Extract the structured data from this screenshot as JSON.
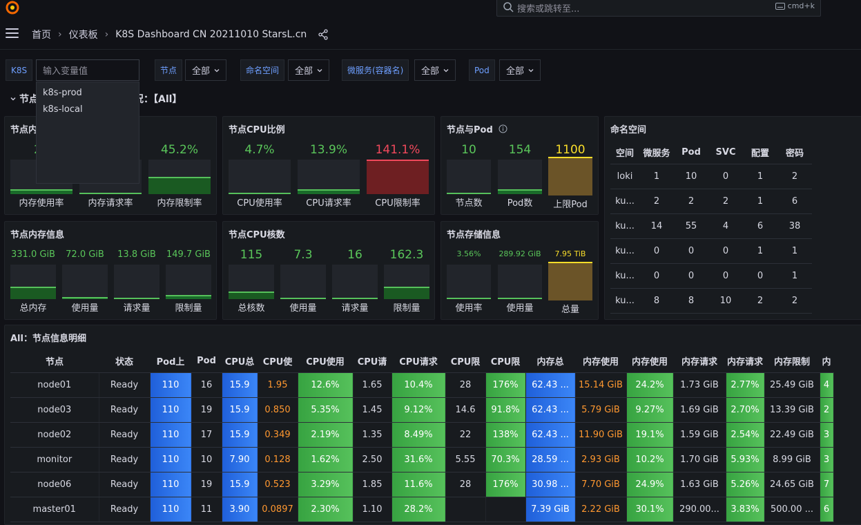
{
  "search": {
    "placeholder": "搜索或跳转至...",
    "shortcut": "cmd+k"
  },
  "breadcrumb": {
    "home": "首页",
    "dashboards": "仪表板",
    "current": "K8S Dashboard CN 20211010 StarsL.cn"
  },
  "variables": {
    "k8s_label": "K8S",
    "k8s_placeholder": "输入变量值",
    "node_label": "节点",
    "node_value": "全部",
    "ns_label": "命名空间",
    "ns_value": "全部",
    "svc_label": "微服务(容器名)",
    "svc_value": "全部",
    "pod_label": "Pod",
    "pod_value": "全部"
  },
  "dropdown": {
    "options": [
      "k8s-prod",
      "k8s-local"
    ]
  },
  "row_header": {
    "prefix": "节点",
    "suffix": "况：【All】"
  },
  "panels": {
    "mem_ratio": {
      "title": "节点内",
      "g1": {
        "value": "21",
        "label": "内存使用率"
      },
      "g2": {
        "value": "",
        "label": "内存请求率"
      },
      "g3": {
        "value": "45.2%",
        "label": "内存限制率"
      }
    },
    "cpu_ratio": {
      "title": "节点CPU比例",
      "g1": {
        "value": "4.7%",
        "label": "CPU使用率"
      },
      "g2": {
        "value": "13.9%",
        "label": "CPU请求率"
      },
      "g3": {
        "value": "141.1%",
        "label": "CPU限制率"
      }
    },
    "node_pod": {
      "title": "节点与Pod",
      "g1": {
        "value": "10",
        "label": "节点数"
      },
      "g2": {
        "value": "154",
        "label": "Pod数"
      },
      "g3": {
        "value": "1100",
        "label": "上限Pod"
      }
    },
    "mem_info": {
      "title": "节点内存信息",
      "g1": {
        "value": "331.0 GiB",
        "label": "总内存"
      },
      "g2": {
        "value": "72.0 GiB",
        "label": "使用量"
      },
      "g3": {
        "value": "13.8 GiB",
        "label": "请求量"
      },
      "g4": {
        "value": "149.7 GiB",
        "label": "限制量"
      }
    },
    "cpu_cores": {
      "title": "节点CPU核数",
      "g1": {
        "value": "115",
        "label": "总核数"
      },
      "g2": {
        "value": "7.3",
        "label": "使用量"
      },
      "g3": {
        "value": "16",
        "label": "请求量"
      },
      "g4": {
        "value": "162.3",
        "label": "限制量"
      }
    },
    "storage": {
      "title": "节点存储信息",
      "g1": {
        "value": "3.56%",
        "label": "使用率"
      },
      "g2": {
        "value": "289.92 GiB",
        "label": "使用量"
      },
      "g3": {
        "value": "7.95 TiB",
        "label": "总量"
      }
    }
  },
  "namespace": {
    "title": "命名空间",
    "headers": [
      "空间",
      "微服务",
      "Pod",
      "SVC",
      "配置",
      "密码"
    ],
    "rows": [
      [
        "loki",
        "1",
        "10",
        "0",
        "1",
        "2"
      ],
      [
        "ku...",
        "2",
        "2",
        "2",
        "1",
        "6"
      ],
      [
        "ku...",
        "14",
        "55",
        "4",
        "6",
        "38"
      ],
      [
        "ku...",
        "0",
        "0",
        "0",
        "1",
        "1"
      ],
      [
        "ku...",
        "0",
        "0",
        "0",
        "0",
        "1"
      ],
      [
        "ku...",
        "8",
        "8",
        "10",
        "2",
        "2"
      ]
    ]
  },
  "detail": {
    "title": "All：节点信息明细",
    "headers": [
      "节点",
      "状态",
      "Pod上",
      "Pod",
      "CPU总",
      "CPU使",
      "CPU使用",
      "CPU请",
      "CPU请求",
      "CPU限",
      "CPU限",
      "内存总",
      "内存使用",
      "内存使用",
      "内存请求",
      "内存请求",
      "内存限制",
      "内"
    ],
    "rows": [
      [
        "node01",
        "Ready",
        "110",
        "16",
        "15.9",
        "1.95",
        "12.6%",
        "1.65",
        "10.4%",
        "28",
        "176%",
        "62.43 ...",
        "15.14 GiB",
        "24.2%",
        "1.73 GiB",
        "2.77%",
        "25.49 GiB",
        "4"
      ],
      [
        "node03",
        "Ready",
        "110",
        "19",
        "15.9",
        "0.850",
        "5.35%",
        "1.45",
        "9.12%",
        "14.6",
        "91.8%",
        "62.43 ...",
        "5.79 GiB",
        "9.27%",
        "1.69 GiB",
        "2.70%",
        "13.39 GiB",
        "2"
      ],
      [
        "node02",
        "Ready",
        "110",
        "17",
        "15.9",
        "0.349",
        "2.19%",
        "1.35",
        "8.49%",
        "22",
        "138%",
        "62.43 ...",
        "11.90 GiB",
        "19.1%",
        "1.59 GiB",
        "2.54%",
        "22.49 GiB",
        "3"
      ],
      [
        "monitor",
        "Ready",
        "110",
        "10",
        "7.90",
        "0.128",
        "1.62%",
        "2.50",
        "31.6%",
        "5.55",
        "70.3%",
        "28.59 ...",
        "2.93 GiB",
        "10.2%",
        "1.70 GiB",
        "5.93%",
        "8.99 GiB",
        "3"
      ],
      [
        "node06",
        "Ready",
        "110",
        "19",
        "15.9",
        "0.523",
        "3.29%",
        "1.85",
        "11.6%",
        "28",
        "176%",
        "30.98 ...",
        "7.70 GiB",
        "24.9%",
        "1.63 GiB",
        "5.26%",
        "24.65 GiB",
        "7"
      ],
      [
        "master01",
        "Ready",
        "110",
        "11",
        "3.90",
        "0.0897",
        "2.30%",
        "1.10",
        "28.2%",
        "",
        "",
        "7.39 GiB",
        "2.22 GiB",
        "30.1%",
        "290.00...",
        "3.83%",
        "500.00 ...",
        "6"
      ]
    ]
  },
  "colors": {
    "blue_cell": "#2f74e8",
    "green_cell": "#4cb654",
    "orange_text": "#ff9830",
    "red_fill": "#6e1f22",
    "yellow_fill": "#6b5428"
  }
}
